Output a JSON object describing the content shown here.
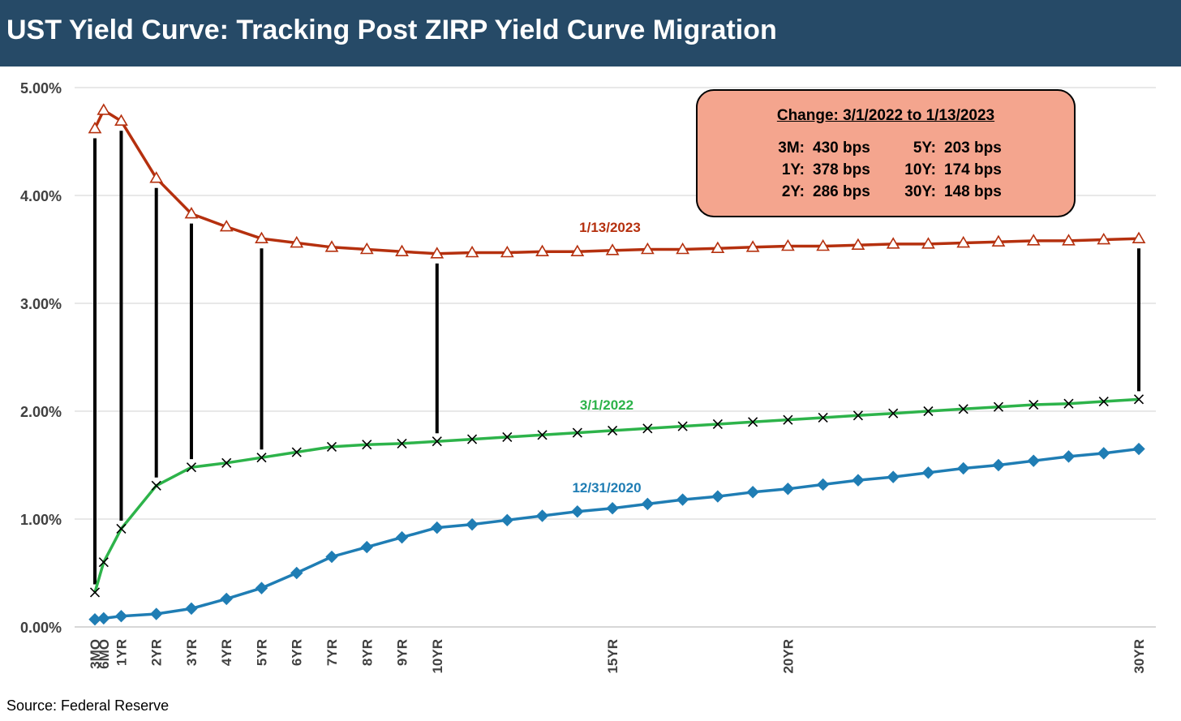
{
  "header": {
    "title": "UST Yield Curve: Tracking Post ZIRP Yield Curve Migration"
  },
  "source": "Source: Federal Reserve",
  "callout": {
    "title": "Change: 3/1/2022 to 1/13/2023",
    "rows": [
      {
        "key": "3M:",
        "value": "430 bps"
      },
      {
        "key": "1Y:",
        "value": "378 bps"
      },
      {
        "key": "2Y:",
        "value": "286 bps"
      },
      {
        "key": "5Y:",
        "value": "203 bps"
      },
      {
        "key": "10Y:",
        "value": "174 bps"
      },
      {
        "key": "30Y:",
        "value": "148 bps"
      }
    ]
  },
  "colors": {
    "title_bg": "#264a67",
    "series_2023": "#b5300e",
    "series_2022": "#2db34a",
    "series_2020": "#1f7db4",
    "callout_bg": "#f4a58e",
    "connector": "#000000",
    "grid": "#d9d9d9"
  },
  "chart_data": {
    "type": "line",
    "x": [
      0.25,
      0.5,
      1,
      2,
      3,
      4,
      5,
      6,
      7,
      8,
      9,
      10,
      11,
      12,
      13,
      14,
      15,
      16,
      17,
      18,
      19,
      20,
      21,
      22,
      23,
      24,
      25,
      26,
      27,
      28,
      29,
      30
    ],
    "x_tick_labels": [
      {
        "x": 0.25,
        "label": "3MO"
      },
      {
        "x": 0.5,
        "label": "6MO"
      },
      {
        "x": 1,
        "label": "1YR"
      },
      {
        "x": 2,
        "label": "2YR"
      },
      {
        "x": 3,
        "label": "3YR"
      },
      {
        "x": 4,
        "label": "4YR"
      },
      {
        "x": 5,
        "label": "5YR"
      },
      {
        "x": 6,
        "label": "6YR"
      },
      {
        "x": 7,
        "label": "7YR"
      },
      {
        "x": 8,
        "label": "8YR"
      },
      {
        "x": 9,
        "label": "9YR"
      },
      {
        "x": 10,
        "label": "10YR"
      },
      {
        "x": 15,
        "label": "15YR"
      },
      {
        "x": 20,
        "label": "20YR"
      },
      {
        "x": 30,
        "label": "30YR"
      }
    ],
    "y_ticks": [
      "0.00%",
      "1.00%",
      "2.00%",
      "3.00%",
      "4.00%",
      "5.00%"
    ],
    "ylim": [
      0,
      5
    ],
    "grid": true,
    "series": [
      {
        "name": "1/13/2023",
        "marker": "triangle",
        "values": [
          4.62,
          4.79,
          4.69,
          4.16,
          3.83,
          3.71,
          3.6,
          3.56,
          3.52,
          3.5,
          3.48,
          3.46,
          3.47,
          3.47,
          3.48,
          3.48,
          3.49,
          3.5,
          3.5,
          3.51,
          3.52,
          3.53,
          3.53,
          3.54,
          3.55,
          3.55,
          3.56,
          3.57,
          3.58,
          3.58,
          3.59,
          3.6
        ]
      },
      {
        "name": "3/1/2022",
        "marker": "x",
        "values": [
          0.32,
          0.6,
          0.91,
          1.31,
          1.48,
          1.52,
          1.57,
          1.62,
          1.67,
          1.69,
          1.7,
          1.72,
          1.74,
          1.76,
          1.78,
          1.8,
          1.82,
          1.84,
          1.86,
          1.88,
          1.9,
          1.92,
          1.94,
          1.96,
          1.98,
          2.0,
          2.02,
          2.04,
          2.06,
          2.07,
          2.09,
          2.11
        ]
      },
      {
        "name": "12/31/2020",
        "marker": "diamond",
        "values": [
          0.07,
          0.08,
          0.1,
          0.12,
          0.17,
          0.26,
          0.36,
          0.5,
          0.65,
          0.74,
          0.83,
          0.92,
          0.95,
          0.99,
          1.03,
          1.07,
          1.1,
          1.14,
          1.18,
          1.21,
          1.25,
          1.28,
          1.32,
          1.36,
          1.39,
          1.43,
          1.47,
          1.5,
          1.54,
          1.58,
          1.61,
          1.65
        ]
      }
    ],
    "connectors": [
      0.25,
      1,
      2,
      3,
      5,
      10,
      30
    ]
  }
}
